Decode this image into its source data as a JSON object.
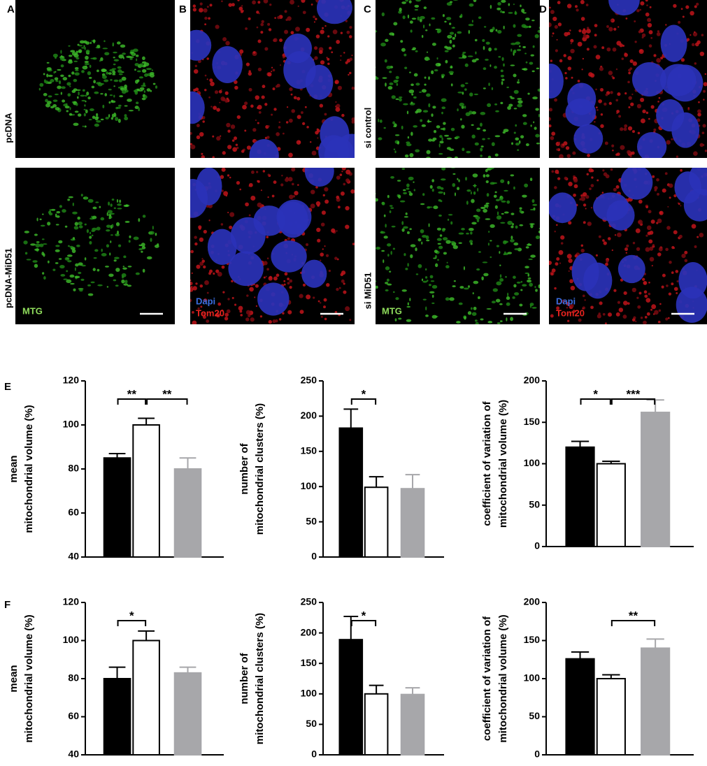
{
  "figure": {
    "panel_labels": [
      "A",
      "B",
      "C",
      "D",
      "E",
      "F"
    ],
    "row_labels": [
      "pcDNA",
      "pcDNA-MiD51",
      "si control",
      "si MiD51"
    ],
    "stain_labels": {
      "mtg": "MTG",
      "dapi": "Dapi",
      "tom20": "Tom20"
    }
  },
  "chart_data": [
    {
      "type": "bar",
      "ylabel": [
        "mean",
        "mitochondrial volume (%)"
      ],
      "values": [
        85,
        100,
        80
      ],
      "errors": [
        2,
        3,
        5
      ],
      "colors": [
        "#000000",
        "#ffffff",
        "#a7a7aa"
      ],
      "edge_colors": [
        "#000000",
        "#000000",
        "#a7a7aa"
      ],
      "ylim": [
        40,
        120
      ],
      "yticks": [
        40,
        60,
        80,
        100,
        120
      ],
      "annotations": [
        {
          "from": 0,
          "to": 1,
          "label": "**"
        },
        {
          "from": 1,
          "to": 2,
          "label": "**"
        }
      ]
    },
    {
      "type": "bar",
      "ylabel": [
        "number of",
        "mitochondrial clusters (%)"
      ],
      "values": [
        183,
        99,
        97
      ],
      "errors": [
        27,
        15,
        20
      ],
      "colors": [
        "#000000",
        "#ffffff",
        "#a7a7aa"
      ],
      "edge_colors": [
        "#000000",
        "#000000",
        "#a7a7aa"
      ],
      "ylim": [
        0,
        250
      ],
      "yticks": [
        0,
        50,
        100,
        150,
        200,
        250
      ],
      "annotations": [
        {
          "from": 0,
          "to": 1,
          "label": "*"
        }
      ]
    },
    {
      "type": "bar",
      "ylabel": [
        "coefficient of variation of",
        "mitochondrial volume (%)"
      ],
      "values": [
        120,
        100,
        162
      ],
      "errors": [
        7,
        3,
        15
      ],
      "colors": [
        "#000000",
        "#ffffff",
        "#a7a7aa"
      ],
      "edge_colors": [
        "#000000",
        "#000000",
        "#a7a7aa"
      ],
      "ylim": [
        0,
        200
      ],
      "yticks": [
        0,
        50,
        100,
        150,
        200
      ],
      "annotations": [
        {
          "from": 0,
          "to": 1,
          "label": "*"
        },
        {
          "from": 1,
          "to": 2,
          "label": "***"
        }
      ]
    },
    {
      "type": "bar",
      "ylabel": [
        "mean",
        "mitochondrial volume (%)"
      ],
      "values": [
        80,
        100,
        83
      ],
      "errors": [
        6,
        5,
        3
      ],
      "colors": [
        "#000000",
        "#ffffff",
        "#a7a7aa"
      ],
      "edge_colors": [
        "#000000",
        "#000000",
        "#a7a7aa"
      ],
      "ylim": [
        40,
        120
      ],
      "yticks": [
        40,
        60,
        80,
        100,
        120
      ],
      "annotations": [
        {
          "from": 0,
          "to": 1,
          "label": "*"
        }
      ]
    },
    {
      "type": "bar",
      "ylabel": [
        "number of",
        "mitochondrial clusters (%)"
      ],
      "values": [
        189,
        100,
        99
      ],
      "errors": [
        38,
        14,
        11
      ],
      "colors": [
        "#000000",
        "#ffffff",
        "#a7a7aa"
      ],
      "edge_colors": [
        "#000000",
        "#000000",
        "#a7a7aa"
      ],
      "ylim": [
        0,
        250
      ],
      "yticks": [
        0,
        50,
        100,
        150,
        200,
        250
      ],
      "annotations": [
        {
          "from": 0,
          "to": 1,
          "label": "*"
        }
      ]
    },
    {
      "type": "bar",
      "ylabel": [
        "coefficient of variation of",
        "mitochondrial volume (%)"
      ],
      "values": [
        126,
        100,
        140
      ],
      "errors": [
        9,
        5,
        12
      ],
      "colors": [
        "#000000",
        "#ffffff",
        "#a7a7aa"
      ],
      "edge_colors": [
        "#000000",
        "#000000",
        "#a7a7aa"
      ],
      "ylim": [
        0,
        200
      ],
      "yticks": [
        0,
        50,
        100,
        150,
        200
      ],
      "annotations": [
        {
          "from": 1,
          "to": 2,
          "label": "**"
        }
      ]
    }
  ]
}
